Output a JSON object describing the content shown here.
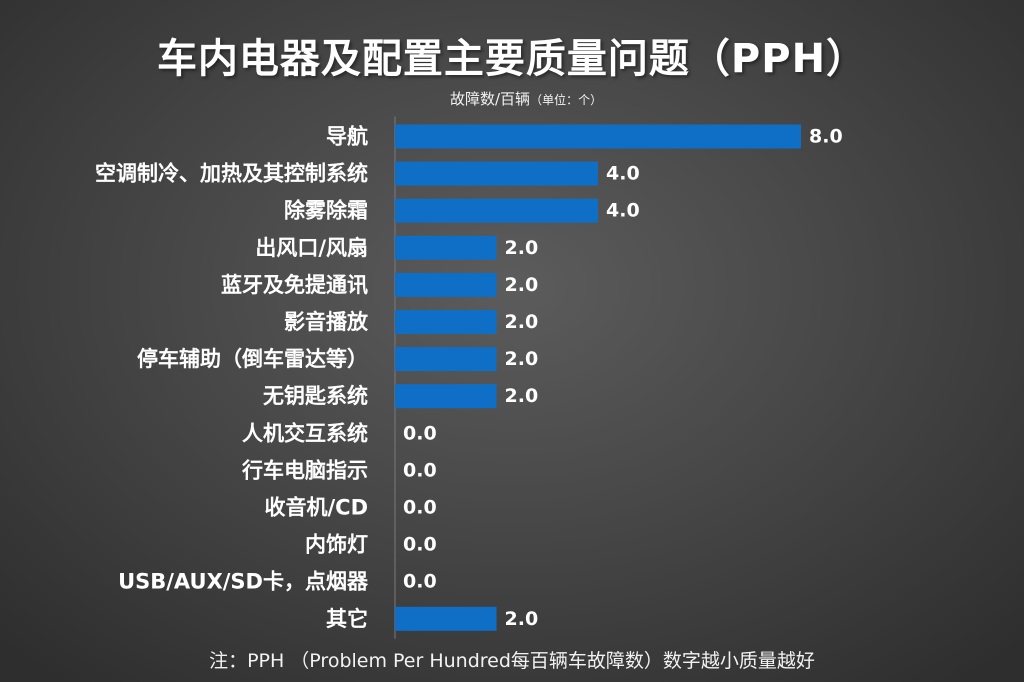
{
  "title": "车内电器及配置主要质量问题（PPH）",
  "unit_main": "故障数/百辆",
  "unit_sub": "（单位：个）",
  "note": "注：PPH （Problem Per Hundred每百辆车故障数）数字越小质量越好",
  "chart_data": {
    "type": "bar",
    "orientation": "horizontal",
    "title": "车内电器及配置主要质量问题（PPH）",
    "xlabel": "故障数/百辆（单位：个）",
    "categories": [
      "导航",
      "空调制冷、加热及其控制系统",
      "除雾除霜",
      "出风口/风扇",
      "蓝牙及免提通讯",
      "影音播放",
      "停车辅助（倒车雷达等）",
      "无钥匙系统",
      "人机交互系统",
      "行车电脑指示",
      "收音机/CD",
      "内饰灯",
      "USB/AUX/SD卡，点烟器",
      "其它"
    ],
    "values": [
      8.0,
      4.0,
      4.0,
      2.0,
      2.0,
      2.0,
      2.0,
      2.0,
      0.0,
      0.0,
      0.0,
      0.0,
      0.0,
      2.0
    ],
    "value_labels": [
      "8.0",
      "4.0",
      "4.0",
      "2.0",
      "2.0",
      "2.0",
      "2.0",
      "2.0",
      "0.0",
      "0.0",
      "0.0",
      "0.0",
      "0.0",
      "2.0"
    ],
    "xlim": [
      0,
      8
    ],
    "bar_color": "#0f6fc6",
    "grid": false,
    "legend": "none"
  }
}
